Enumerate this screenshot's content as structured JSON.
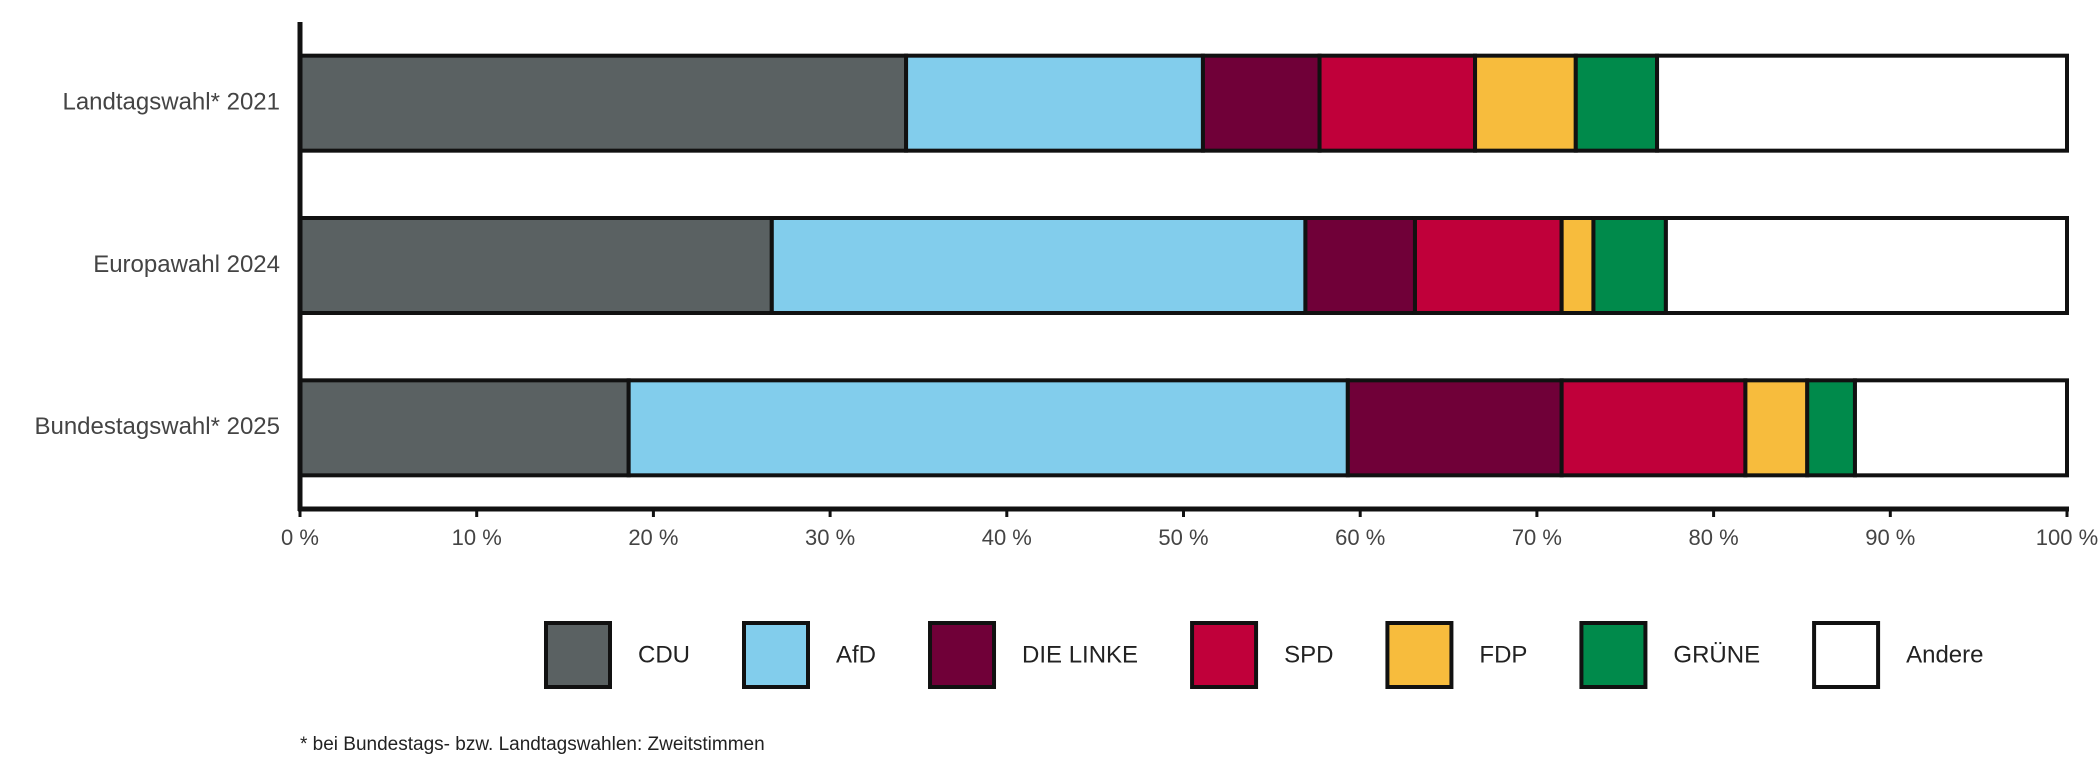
{
  "chart_data": {
    "type": "stacked-bar",
    "orientation": "horizontal",
    "categories": [
      "Landtagswahl* 2021",
      "Europawahl 2024",
      "Bundestagswahl* 2025"
    ],
    "series": [
      {
        "name": "CDU",
        "color": "#5a6162",
        "values": [
          34.3,
          26.7,
          18.6
        ]
      },
      {
        "name": "AfD",
        "color": "#82cdec",
        "values": [
          16.8,
          30.2,
          40.7
        ]
      },
      {
        "name": "DIE LINKE",
        "color": "#700038",
        "values": [
          6.6,
          6.2,
          12.1
        ]
      },
      {
        "name": "SPD",
        "color": "#c0003a",
        "values": [
          8.8,
          8.3,
          10.4
        ]
      },
      {
        "name": "FDP",
        "color": "#f7bc3d",
        "values": [
          5.7,
          1.8,
          3.5
        ]
      },
      {
        "name": "GRÜNE",
        "color": "#008a4b",
        "values": [
          4.6,
          4.1,
          2.7
        ]
      },
      {
        "name": "Andere",
        "color": "#ffffff",
        "values": [
          23.2,
          22.7,
          12.0
        ]
      }
    ],
    "xlim": [
      0,
      100
    ],
    "xticks": [
      {
        "value": 0,
        "label": "0 %"
      },
      {
        "value": 10,
        "label": "10 %"
      },
      {
        "value": 20,
        "label": "20 %"
      },
      {
        "value": 30,
        "label": "30 %"
      },
      {
        "value": 40,
        "label": "40 %"
      },
      {
        "value": 50,
        "label": "50 %"
      },
      {
        "value": 60,
        "label": "60 %"
      },
      {
        "value": 70,
        "label": "70 %"
      },
      {
        "value": 80,
        "label": "80 %"
      },
      {
        "value": 90,
        "label": "90 %"
      },
      {
        "value": 100,
        "label": "100 %"
      }
    ],
    "legend": "bottom",
    "footnote": "* bei Bundestags- bzw. Landtagswahlen: Zweitstimmen"
  }
}
